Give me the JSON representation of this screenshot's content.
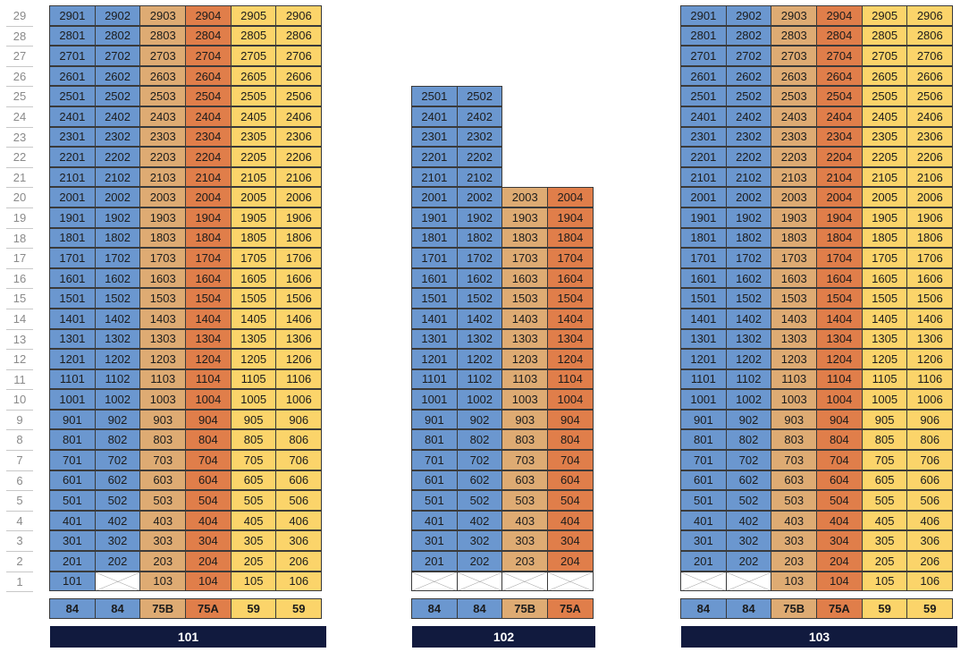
{
  "floors": [
    "29",
    "28",
    "27",
    "26",
    "25",
    "24",
    "23",
    "22",
    "21",
    "20",
    "19",
    "18",
    "17",
    "16",
    "15",
    "14",
    "13",
    "12",
    "11",
    "10",
    "9",
    "8",
    "7",
    "6",
    "5",
    "4",
    "3",
    "2",
    "1"
  ],
  "colors": {
    "blue": "#6b97cf",
    "tan": "#deab73",
    "orange": "#e07e4a",
    "yellow": "#fbd46a",
    "label_bg": "#111a3e"
  },
  "buildings": [
    {
      "name": "101",
      "columns": [
        "blue",
        "blue",
        "tan",
        "orange",
        "yellow",
        "yellow"
      ],
      "unit_types": [
        "84",
        "84",
        "75B",
        "75A",
        "59",
        "59"
      ],
      "rows": [
        [
          "2901",
          "2902",
          "2903",
          "2904",
          "2905",
          "2906"
        ],
        [
          "2801",
          "2802",
          "2803",
          "2804",
          "2805",
          "2806"
        ],
        [
          "2701",
          "2702",
          "2703",
          "2704",
          "2705",
          "2706"
        ],
        [
          "2601",
          "2602",
          "2603",
          "2604",
          "2605",
          "2606"
        ],
        [
          "2501",
          "2502",
          "2503",
          "2504",
          "2505",
          "2506"
        ],
        [
          "2401",
          "2402",
          "2403",
          "2404",
          "2405",
          "2406"
        ],
        [
          "2301",
          "2302",
          "2303",
          "2304",
          "2305",
          "2306"
        ],
        [
          "2201",
          "2202",
          "2203",
          "2204",
          "2205",
          "2206"
        ],
        [
          "2101",
          "2102",
          "2103",
          "2104",
          "2105",
          "2106"
        ],
        [
          "2001",
          "2002",
          "2003",
          "2004",
          "2005",
          "2006"
        ],
        [
          "1901",
          "1902",
          "1903",
          "1904",
          "1905",
          "1906"
        ],
        [
          "1801",
          "1802",
          "1803",
          "1804",
          "1805",
          "1806"
        ],
        [
          "1701",
          "1702",
          "1703",
          "1704",
          "1705",
          "1706"
        ],
        [
          "1601",
          "1602",
          "1603",
          "1604",
          "1605",
          "1606"
        ],
        [
          "1501",
          "1502",
          "1503",
          "1504",
          "1505",
          "1506"
        ],
        [
          "1401",
          "1402",
          "1403",
          "1404",
          "1405",
          "1406"
        ],
        [
          "1301",
          "1302",
          "1303",
          "1304",
          "1305",
          "1306"
        ],
        [
          "1201",
          "1202",
          "1203",
          "1204",
          "1205",
          "1206"
        ],
        [
          "1101",
          "1102",
          "1103",
          "1104",
          "1105",
          "1106"
        ],
        [
          "1001",
          "1002",
          "1003",
          "1004",
          "1005",
          "1006"
        ],
        [
          "901",
          "902",
          "903",
          "904",
          "905",
          "906"
        ],
        [
          "801",
          "802",
          "803",
          "804",
          "805",
          "806"
        ],
        [
          "701",
          "702",
          "703",
          "704",
          "705",
          "706"
        ],
        [
          "601",
          "602",
          "603",
          "604",
          "605",
          "606"
        ],
        [
          "501",
          "502",
          "503",
          "504",
          "505",
          "506"
        ],
        [
          "401",
          "402",
          "403",
          "404",
          "405",
          "406"
        ],
        [
          "301",
          "302",
          "303",
          "304",
          "305",
          "306"
        ],
        [
          "201",
          "202",
          "203",
          "204",
          "205",
          "206"
        ],
        [
          "101",
          "X",
          "103",
          "104",
          "105",
          "106"
        ]
      ]
    },
    {
      "name": "102",
      "columns": [
        "blue",
        "blue",
        "tan",
        "orange"
      ],
      "unit_types": [
        "84",
        "84",
        "75B",
        "75A"
      ],
      "rows": [
        [
          "",
          "",
          "",
          ""
        ],
        [
          "",
          "",
          "",
          ""
        ],
        [
          "",
          "",
          "",
          ""
        ],
        [
          "",
          "",
          "",
          ""
        ],
        [
          "2501",
          "2502",
          "",
          ""
        ],
        [
          "2401",
          "2402",
          "",
          ""
        ],
        [
          "2301",
          "2302",
          "",
          ""
        ],
        [
          "2201",
          "2202",
          "",
          ""
        ],
        [
          "2101",
          "2102",
          "",
          ""
        ],
        [
          "2001",
          "2002",
          "2003",
          "2004"
        ],
        [
          "1901",
          "1902",
          "1903",
          "1904"
        ],
        [
          "1801",
          "1802",
          "1803",
          "1804"
        ],
        [
          "1701",
          "1702",
          "1703",
          "1704"
        ],
        [
          "1601",
          "1602",
          "1603",
          "1604"
        ],
        [
          "1501",
          "1502",
          "1503",
          "1504"
        ],
        [
          "1401",
          "1402",
          "1403",
          "1404"
        ],
        [
          "1301",
          "1302",
          "1303",
          "1304"
        ],
        [
          "1201",
          "1202",
          "1203",
          "1204"
        ],
        [
          "1101",
          "1102",
          "1103",
          "1104"
        ],
        [
          "1001",
          "1002",
          "1003",
          "1004"
        ],
        [
          "901",
          "902",
          "903",
          "904"
        ],
        [
          "801",
          "802",
          "803",
          "804"
        ],
        [
          "701",
          "702",
          "703",
          "704"
        ],
        [
          "601",
          "602",
          "603",
          "604"
        ],
        [
          "501",
          "502",
          "503",
          "504"
        ],
        [
          "401",
          "402",
          "403",
          "404"
        ],
        [
          "301",
          "302",
          "303",
          "304"
        ],
        [
          "201",
          "202",
          "203",
          "204"
        ],
        [
          "X",
          "X",
          "X",
          "X"
        ]
      ]
    },
    {
      "name": "103",
      "columns": [
        "blue",
        "blue",
        "tan",
        "orange",
        "yellow",
        "yellow"
      ],
      "unit_types": [
        "84",
        "84",
        "75B",
        "75A",
        "59",
        "59"
      ],
      "rows": [
        [
          "2901",
          "2902",
          "2903",
          "2904",
          "2905",
          "2906"
        ],
        [
          "2801",
          "2802",
          "2803",
          "2804",
          "2805",
          "2806"
        ],
        [
          "2701",
          "2702",
          "2703",
          "2704",
          "2705",
          "2706"
        ],
        [
          "2601",
          "2602",
          "2603",
          "2604",
          "2605",
          "2606"
        ],
        [
          "2501",
          "2502",
          "2503",
          "2504",
          "2505",
          "2506"
        ],
        [
          "2401",
          "2402",
          "2403",
          "2404",
          "2405",
          "2406"
        ],
        [
          "2301",
          "2302",
          "2303",
          "2304",
          "2305",
          "2306"
        ],
        [
          "2201",
          "2202",
          "2203",
          "2204",
          "2205",
          "2206"
        ],
        [
          "2101",
          "2102",
          "2103",
          "2104",
          "2105",
          "2106"
        ],
        [
          "2001",
          "2002",
          "2003",
          "2004",
          "2005",
          "2006"
        ],
        [
          "1901",
          "1902",
          "1903",
          "1904",
          "1905",
          "1906"
        ],
        [
          "1801",
          "1802",
          "1803",
          "1804",
          "1805",
          "1806"
        ],
        [
          "1701",
          "1702",
          "1703",
          "1704",
          "1705",
          "1706"
        ],
        [
          "1601",
          "1602",
          "1603",
          "1604",
          "1605",
          "1606"
        ],
        [
          "1501",
          "1502",
          "1503",
          "1504",
          "1505",
          "1506"
        ],
        [
          "1401",
          "1402",
          "1403",
          "1404",
          "1405",
          "1406"
        ],
        [
          "1301",
          "1302",
          "1303",
          "1304",
          "1305",
          "1306"
        ],
        [
          "1201",
          "1202",
          "1203",
          "1204",
          "1205",
          "1206"
        ],
        [
          "1101",
          "1102",
          "1103",
          "1104",
          "1105",
          "1106"
        ],
        [
          "1001",
          "1002",
          "1003",
          "1004",
          "1005",
          "1006"
        ],
        [
          "901",
          "902",
          "903",
          "904",
          "905",
          "906"
        ],
        [
          "801",
          "802",
          "803",
          "804",
          "805",
          "806"
        ],
        [
          "701",
          "702",
          "703",
          "704",
          "705",
          "706"
        ],
        [
          "601",
          "602",
          "603",
          "604",
          "605",
          "606"
        ],
        [
          "501",
          "502",
          "503",
          "504",
          "505",
          "506"
        ],
        [
          "401",
          "402",
          "403",
          "404",
          "405",
          "406"
        ],
        [
          "301",
          "302",
          "303",
          "304",
          "305",
          "306"
        ],
        [
          "201",
          "202",
          "203",
          "204",
          "205",
          "206"
        ],
        [
          "X",
          "X",
          "103",
          "104",
          "105",
          "106"
        ]
      ]
    }
  ]
}
